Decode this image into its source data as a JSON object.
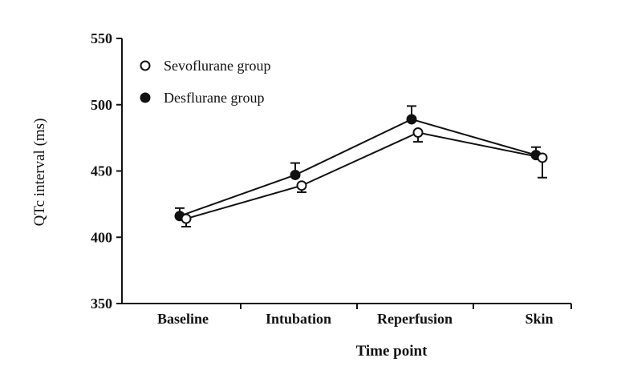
{
  "chart_data": {
    "type": "line",
    "title": "",
    "xlabel": "Time point",
    "ylabel": "QTc interval (ms)",
    "categories": [
      "Baseline",
      "Intubation",
      "Reperfusion",
      "Skin"
    ],
    "ylim": [
      350,
      550
    ],
    "yticks": [
      350,
      400,
      450,
      500,
      550
    ],
    "grid": false,
    "legend_position": "top-left",
    "series": [
      {
        "name": "Sevoflurane group",
        "marker": "open-circle",
        "color": "#111111",
        "values": [
          414,
          439,
          479,
          460
        ],
        "err_minus": [
          6,
          5,
          7,
          15
        ],
        "err_plus": [
          0,
          0,
          0,
          0
        ]
      },
      {
        "name": "Desflurane group",
        "marker": "filled-circle",
        "color": "#111111",
        "values": [
          416,
          447,
          489,
          462
        ],
        "err_minus": [
          0,
          0,
          0,
          0
        ],
        "err_plus": [
          6,
          9,
          10,
          6
        ]
      }
    ]
  }
}
